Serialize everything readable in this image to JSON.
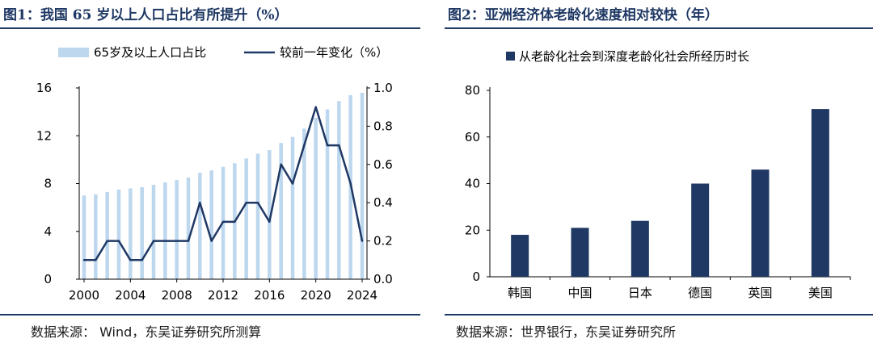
{
  "figure1": {
    "title": "图1：我国 65 岁以上人口占比有所提升（%）",
    "source": "数据来源：  Wind，东吴证券研究所测算",
    "chart_data": {
      "type": "bar+line",
      "x": [
        2000,
        2001,
        2002,
        2003,
        2004,
        2005,
        2006,
        2007,
        2008,
        2009,
        2010,
        2011,
        2012,
        2013,
        2014,
        2015,
        2016,
        2017,
        2018,
        2019,
        2020,
        2021,
        2022,
        2023,
        2024
      ],
      "x_ticks": [
        "2000",
        "2004",
        "2008",
        "2012",
        "2016",
        "2020",
        "2024"
      ],
      "series": [
        {
          "name": "65岁及以上人口占比",
          "kind": "bar",
          "axis": "left",
          "color": "#bdd7ee",
          "values": [
            7.0,
            7.1,
            7.3,
            7.5,
            7.6,
            7.7,
            7.9,
            8.1,
            8.3,
            8.5,
            8.9,
            9.1,
            9.4,
            9.7,
            10.1,
            10.5,
            10.8,
            11.4,
            11.9,
            12.6,
            13.5,
            14.2,
            14.9,
            15.4,
            15.6
          ]
        },
        {
          "name": "较前一年变化（%）",
          "kind": "line",
          "axis": "right",
          "color": "#1f3864",
          "values": [
            0.1,
            0.1,
            0.2,
            0.2,
            0.1,
            0.1,
            0.2,
            0.2,
            0.2,
            0.2,
            0.4,
            0.2,
            0.3,
            0.3,
            0.4,
            0.4,
            0.3,
            0.6,
            0.5,
            0.7,
            0.9,
            0.7,
            0.7,
            0.5,
            0.2
          ]
        }
      ],
      "ylim_left": [
        0,
        16
      ],
      "yticks_left": [
        0,
        4,
        8,
        12,
        16
      ],
      "ylim_right": [
        0.0,
        1.0
      ],
      "yticks_right": [
        "0.0",
        "0.2",
        "0.4",
        "0.6",
        "0.8",
        "1.0"
      ],
      "legend_placement": "top"
    }
  },
  "figure2": {
    "title": "图2：亚洲经济体老龄化速度相对较快（年）",
    "source": "数据来源：世界银行，东吴证券研究所",
    "chart_data": {
      "type": "bar",
      "categories": [
        "韩国",
        "中国",
        "日本",
        "德国",
        "英国",
        "美国"
      ],
      "series": [
        {
          "name": "从老龄化社会到深度老龄化社会所经历时长",
          "color": "#1f3864",
          "values": [
            18,
            21,
            24,
            40,
            46,
            72
          ]
        }
      ],
      "ylim": [
        0,
        80
      ],
      "yticks": [
        0,
        20,
        40,
        60,
        80
      ],
      "legend_placement": "top"
    }
  }
}
